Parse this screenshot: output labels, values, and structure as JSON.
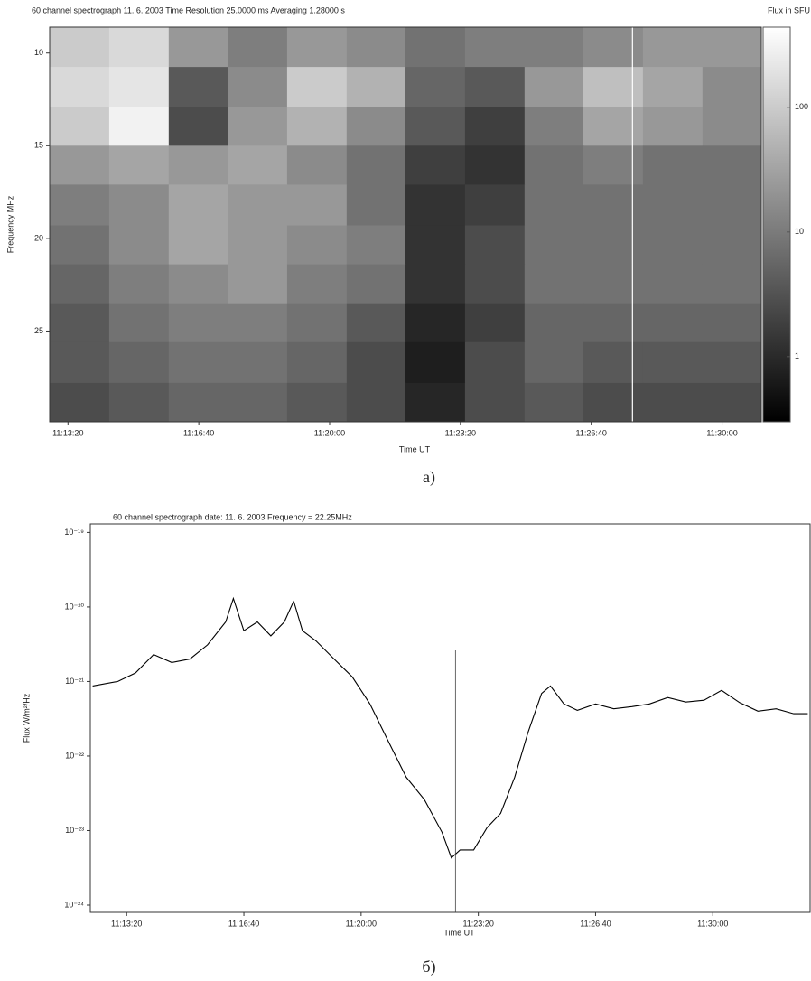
{
  "chart_data": [
    {
      "type": "heatmap",
      "title": "60 channel spectrograph     11. 6. 2003    Time Resolution  25.0000 ms     Averaging  1.28000 s",
      "colorbar_label": "Flux in SFU",
      "x_label": "Time UT",
      "y_label": "Frequency MHz",
      "caption": "а)",
      "xlim": [
        "11:12:52",
        "11:31:00"
      ],
      "xticks": [
        "11:13:20",
        "11:16:40",
        "11:20:00",
        "11:23:20",
        "11:26:40",
        "11:30:00"
      ],
      "ylim": [
        8.6,
        29.9
      ],
      "y_inverted": true,
      "yticks": [
        10,
        15,
        20,
        25
      ],
      "zlim": [
        0.3,
        440
      ],
      "zlog": true,
      "zticks": [
        100,
        10,
        1
      ],
      "cursor": "11:27:43",
      "xbins": [
        "11:12:52",
        "11:14:23",
        "11:15:54",
        "11:17:24",
        "11:18:55",
        "11:20:26",
        "11:21:56",
        "11:23:27",
        "11:24:58",
        "11:26:28",
        "11:27:59",
        "11:29:30",
        "11:31:00"
      ],
      "ybins": [
        8.6,
        10.75,
        12.9,
        15,
        17.1,
        19.3,
        21.4,
        23.5,
        25.6,
        27.8,
        29.9
      ],
      "values": [
        [
          100,
          150,
          23,
          11,
          23,
          16,
          7.9,
          11,
          11,
          16,
          23,
          23
        ],
        [
          150,
          210,
          3.8,
          16,
          100,
          49,
          5.5,
          3.8,
          23,
          71,
          34,
          16
        ],
        [
          100,
          300,
          2.6,
          23,
          49,
          16,
          3.8,
          1.8,
          11,
          34,
          23,
          16
        ],
        [
          23,
          34,
          23,
          34,
          16,
          7.9,
          1.8,
          1.3,
          7.9,
          11,
          7.9,
          7.9
        ],
        [
          11,
          16,
          34,
          23,
          23,
          7.9,
          1.3,
          1.8,
          7.9,
          7.9,
          7.9,
          7.9
        ],
        [
          7.9,
          16,
          34,
          23,
          16,
          11,
          1.3,
          2.6,
          7.9,
          7.9,
          7.9,
          7.9
        ],
        [
          5.5,
          11,
          16,
          23,
          11,
          7.9,
          1.3,
          2.6,
          7.9,
          7.9,
          7.9,
          7.9
        ],
        [
          3.8,
          7.9,
          11,
          11,
          7.9,
          3.8,
          0.88,
          1.8,
          5.5,
          5.5,
          5.5,
          5.5
        ],
        [
          3.8,
          5.5,
          7.9,
          7.9,
          5.5,
          2.6,
          0.71,
          2.6,
          5.5,
          3.8,
          3.8,
          3.8
        ],
        [
          2.6,
          3.8,
          5.5,
          5.5,
          3.8,
          2.6,
          0.88,
          2.6,
          3.8,
          2.6,
          2.6,
          2.6
        ]
      ]
    },
    {
      "type": "line",
      "title": "60 channel spectrograph     date:  11. 6. 2003     Frequency = 22.25MHz",
      "x_label": "Time UT",
      "y_label": "Flux W/m²/Hz",
      "caption": "б)",
      "color": "#000000",
      "ylog": true,
      "xlim": [
        "11:12:18",
        "11:32:46"
      ],
      "xticks": [
        "11:13:20",
        "11:16:40",
        "11:20:00",
        "11:23:20",
        "11:26:40",
        "11:30:00"
      ],
      "ylim": [
        8e-25,
        1.3e-19
      ],
      "yticks": [
        {
          "value": 1e-19,
          "label": "10⁻¹⁹"
        },
        {
          "value": 1e-20,
          "label": "10⁻²⁰"
        },
        {
          "value": 1e-21,
          "label": "10⁻²¹"
        },
        {
          "value": 1e-22,
          "label": "10⁻²²"
        },
        {
          "value": 1e-23,
          "label": "10⁻²³"
        },
        {
          "value": 1e-24,
          "label": "10⁻²⁴"
        }
      ],
      "cursor": "11:22:41",
      "x": [
        "11:12:22",
        "11:13:05",
        "11:13:35",
        "11:14:06",
        "11:14:37",
        "11:15:08",
        "11:15:38",
        "11:16:09",
        "11:16:22",
        "11:16:40",
        "11:17:03",
        "11:17:26",
        "11:17:49",
        "11:18:05",
        "11:18:20",
        "11:18:43",
        "11:19:14",
        "11:19:45",
        "11:20:15",
        "11:20:46",
        "11:21:17",
        "11:21:48",
        "11:22:18",
        "11:22:34",
        "11:22:49",
        "11:23:12",
        "11:23:35",
        "11:23:58",
        "11:24:22",
        "11:24:45",
        "11:25:08",
        "11:25:23",
        "11:25:46",
        "11:26:09",
        "11:26:40",
        "11:27:11",
        "11:27:42",
        "11:28:12",
        "11:28:43",
        "11:29:14",
        "11:29:45",
        "11:30:15",
        "11:30:46",
        "11:31:17",
        "11:31:48",
        "11:32:18",
        "11:32:42"
      ],
      "values": [
        8.7e-22,
        1e-21,
        1.3e-21,
        2.3e-21,
        1.8e-21,
        2e-21,
        3.1e-21,
        6.3e-21,
        1.3e-20,
        4.8e-21,
        6.3e-21,
        4.1e-21,
        6.3e-21,
        1.2e-20,
        4.8e-21,
        3.5e-21,
        2e-21,
        1.15e-21,
        5e-22,
        1.6e-22,
        5.2e-23,
        2.6e-23,
        9.5e-24,
        4.3e-24,
        5.5e-24,
        5.5e-24,
        1.1e-23,
        1.7e-23,
        5.2e-23,
        2.1e-22,
        6.9e-22,
        8.7e-22,
        5e-22,
        4.1e-22,
        5e-22,
        4.3e-22,
        4.6e-22,
        5e-22,
        6.1e-22,
        5.3e-22,
        5.6e-22,
        7.6e-22,
        5.2e-22,
        4e-22,
        4.3e-22,
        3.7e-22,
        3.7e-22
      ]
    }
  ]
}
